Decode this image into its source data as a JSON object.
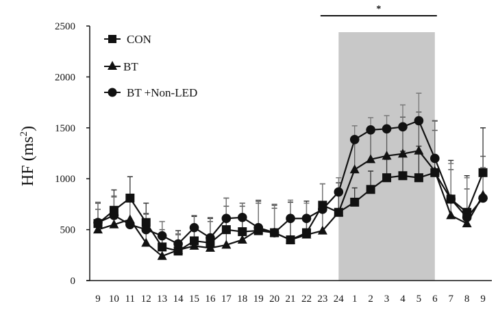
{
  "chart_data": {
    "type": "line",
    "title": "",
    "xlabel": "",
    "ylabel": "HF (ms²)",
    "ylabel_main": "HF (ms",
    "ylabel_sup": "2",
    "ylabel_close": ")",
    "ylim": [
      0,
      2500
    ],
    "yticks": [
      0,
      500,
      1000,
      1500,
      2000,
      2500
    ],
    "ytick_labels": [
      "0",
      "500",
      "1000",
      "1500",
      "2000",
      "2500"
    ],
    "categories": [
      "9",
      "10",
      "11",
      "12",
      "13",
      "14",
      "15",
      "16",
      "17",
      "18",
      "19",
      "20",
      "21",
      "22",
      "23",
      "24",
      "1",
      "2",
      "3",
      "4",
      "5",
      "6",
      "7",
      "8",
      "9"
    ],
    "grid": false,
    "legend_position": "top-left",
    "shaded_region": {
      "from_category_index": 15,
      "to_category_index": 21,
      "color": "#c8c8c8"
    },
    "significance": {
      "label": "*",
      "from_category_index": 14,
      "to_category_index": 21
    },
    "series": [
      {
        "name": "CON",
        "marker": "square",
        "values": [
          560,
          690,
          810,
          570,
          330,
          290,
          390,
          370,
          500,
          480,
          490,
          470,
          400,
          470,
          740,
          670,
          770,
          895,
          1010,
          1030,
          1010,
          1060,
          800,
          670,
          1060
        ],
        "errors": [
          200,
          200,
          210,
          190,
          250,
          200,
          240,
          240,
          310,
          280,
          290,
          270,
          370,
          310,
          210,
          290,
          140,
          180,
          180,
          240,
          310,
          510,
          380,
          360,
          440
        ]
      },
      {
        "name": "BT",
        "marker": "triangle",
        "values": [
          500,
          550,
          600,
          370,
          240,
          300,
          340,
          320,
          350,
          400,
          500,
          470,
          400,
          450,
          490,
          670,
          1090,
          1190,
          1225,
          1245,
          1275,
          1075,
          640,
          560,
          840
        ],
        "errors": [
          200,
          280,
          200,
          290,
          260,
          150,
          210,
          260,
          380,
          330,
          260,
          240,
          240,
          180,
          240,
          200,
          320,
          300,
          260,
          360,
          380,
          400,
          450,
          340,
          380
        ]
      },
      {
        "name": "BT +Non-LED",
        "marker": "circle",
        "values": [
          570,
          640,
          550,
          500,
          440,
          360,
          520,
          420,
          610,
          620,
          520,
          470,
          610,
          610,
          700,
          870,
          1385,
          1480,
          1490,
          1510,
          1570,
          1200,
          800,
          620,
          810
        ],
        "errors": [
          200,
          180,
          250,
          150,
          140,
          100,
          120,
          200,
          200,
          140,
          270,
          280,
          180,
          150,
          250,
          140,
          135,
          120,
          130,
          215,
          270,
          365,
          350,
          390,
          300
        ]
      }
    ]
  }
}
